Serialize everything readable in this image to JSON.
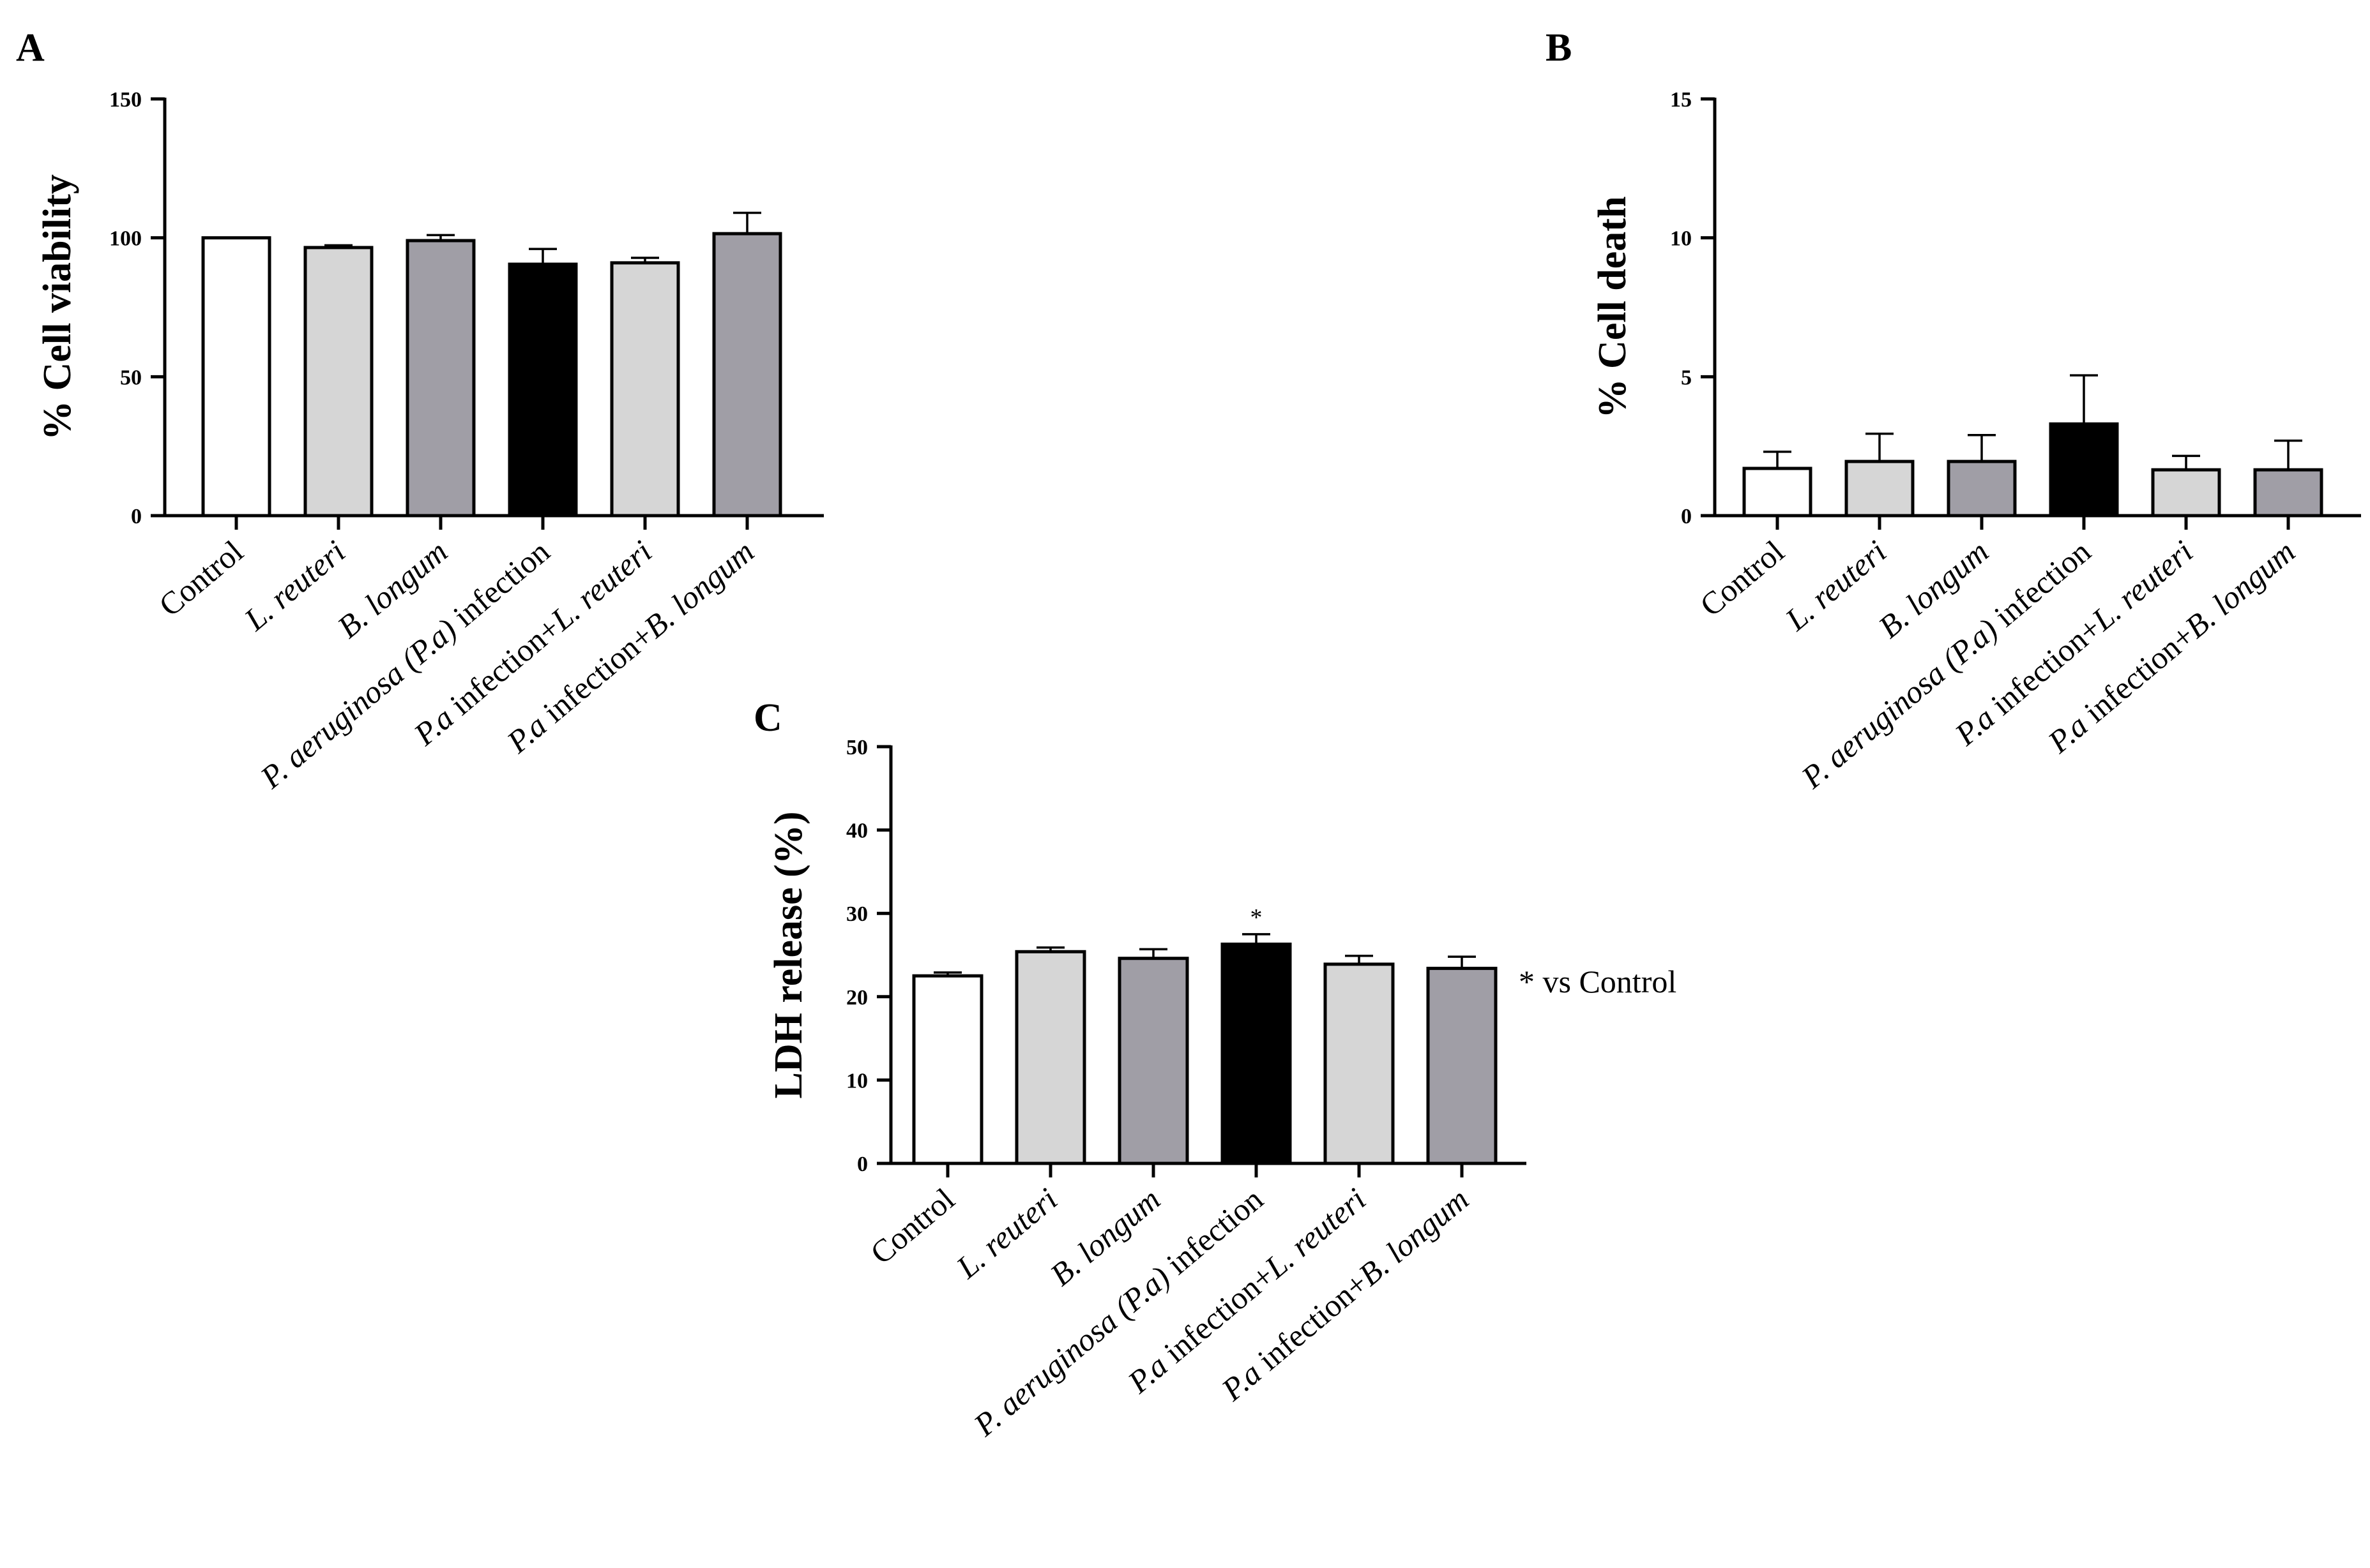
{
  "figure": {
    "categories": [
      {
        "parts": [
          {
            "t": "Control",
            "i": false
          }
        ]
      },
      {
        "parts": [
          {
            "t": "L. reuteri",
            "i": true
          }
        ]
      },
      {
        "parts": [
          {
            "t": "B. longum",
            "i": true
          }
        ]
      },
      {
        "parts": [
          {
            "t": "P. aeruginosa (P.a)",
            "i": true
          },
          {
            "t": " infection",
            "i": false
          }
        ]
      },
      {
        "parts": [
          {
            "t": "P.a",
            "i": true
          },
          {
            "t": " infection+",
            "i": false
          },
          {
            "t": "L. reuteri",
            "i": true
          }
        ]
      },
      {
        "parts": [
          {
            "t": "P.a",
            "i": true
          },
          {
            "t": " infection+",
            "i": false
          },
          {
            "t": "B. longum",
            "i": true
          }
        ]
      }
    ],
    "bar_colors": [
      "#ffffff",
      "#d6d6d6",
      "#a09ea6",
      "#000000",
      "#d6d6d6",
      "#a09ea6"
    ]
  },
  "chart_data": [
    {
      "panel": "A",
      "type": "bar",
      "ylabel": "% Cell viability",
      "ylim": [
        0,
        150
      ],
      "yticks": [
        0,
        50,
        100,
        150
      ],
      "categories": [
        "Control",
        "L. reuteri",
        "B. longum",
        "P. aeruginosa (P.a) infection",
        "P.a infection+L. reuteri",
        "P.a infection+B. longum"
      ],
      "values": [
        100,
        96.5,
        99,
        90.5,
        91,
        101.5
      ],
      "errors": [
        0,
        0.8,
        2,
        5.5,
        1.8,
        7.5
      ],
      "significance": [
        "",
        "",
        "",
        "",
        "",
        ""
      ]
    },
    {
      "panel": "B",
      "type": "bar",
      "ylabel": "% Cell death",
      "ylim": [
        0,
        15
      ],
      "yticks": [
        0,
        5,
        10,
        15
      ],
      "categories": [
        "Control",
        "L. reuteri",
        "B. longum",
        "P. aeruginosa (P.a) infection",
        "P.a infection+L. reuteri",
        "P.a infection+B. longum"
      ],
      "values": [
        1.7,
        1.95,
        1.95,
        3.3,
        1.65,
        1.65
      ],
      "errors": [
        0.6,
        1.0,
        0.95,
        1.75,
        0.5,
        1.05
      ],
      "significance": [
        "",
        "",
        "",
        "",
        "",
        ""
      ]
    },
    {
      "panel": "C",
      "type": "bar",
      "ylabel": "LDH release (%)",
      "ylim": [
        0,
        50
      ],
      "yticks": [
        0,
        10,
        20,
        30,
        40,
        50
      ],
      "categories": [
        "Control",
        "L. reuteri",
        "B. longum",
        "P. aeruginosa (P.a) infection",
        "P.a infection+L. reuteri",
        "P.a infection+B. longum"
      ],
      "values": [
        22.5,
        25.4,
        24.6,
        26.3,
        23.9,
        23.4
      ],
      "errors": [
        0.4,
        0.5,
        1.1,
        1.2,
        1.0,
        1.4
      ],
      "significance": [
        "",
        "",
        "",
        "*",
        "",
        ""
      ],
      "note": "* vs Control"
    }
  ]
}
